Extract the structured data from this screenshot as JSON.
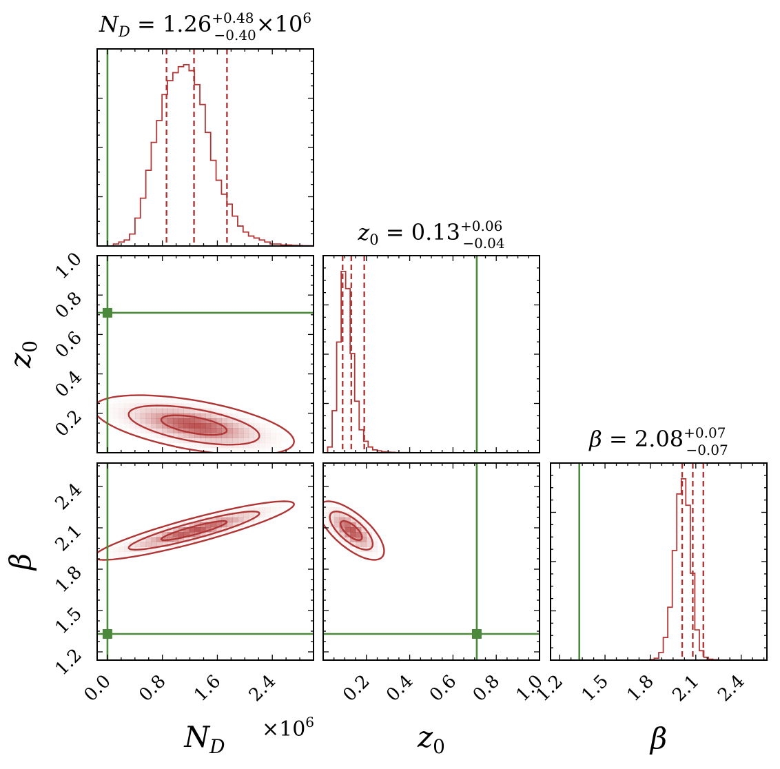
{
  "chart_data": {
    "type": "corner",
    "parameters": [
      "N_D",
      "z0",
      "beta"
    ],
    "truth_values": {
      "N_D": 0.0,
      "z0": 0.71,
      "beta": 1.33
    },
    "colors": {
      "posterior": "#b03535",
      "truth": "#4a8a3a",
      "axes": "#000000"
    },
    "titles": {
      "N_D": {
        "prefix": "N",
        "sub": "D",
        "eq": " = 1.26",
        "up": "+0.48",
        "down": "−0.40",
        "suffix": "×10",
        "exp": "6"
      },
      "z0": {
        "prefix": "z",
        "sub": "0",
        "eq": " = 0.13",
        "up": "+0.06",
        "down": "−0.04"
      },
      "beta": {
        "prefix": "β",
        "sub": "",
        "eq": " = 2.08",
        "up": "+0.07",
        "down": "−0.07"
      }
    },
    "axis_labels": {
      "x_N_D": {
        "main": "N",
        "sub": "D"
      },
      "x_multiplier": {
        "main": "×10",
        "exp": "6"
      },
      "x_z0": {
        "main": "z",
        "sub": "0"
      },
      "x_beta": {
        "main": "β",
        "sub": ""
      },
      "y_z0": {
        "main": "z",
        "sub": "0"
      },
      "y_beta": {
        "main": "β",
        "sub": ""
      }
    },
    "ranges": {
      "N_D": [
        -0.15,
        3.0
      ],
      "z0": [
        0.0,
        1.0
      ],
      "beta": [
        1.14,
        2.57
      ]
    },
    "ticks": {
      "N_D": {
        "values": [
          0.0,
          0.8,
          1.6,
          2.4
        ],
        "labels": [
          "0.0",
          "0.8",
          "1.6",
          "2.4"
        ]
      },
      "z0_x": {
        "values": [
          0.2,
          0.4,
          0.6,
          0.8,
          1.0
        ],
        "labels": [
          "0.2",
          "0.4",
          "0.6",
          "0.8",
          "1.0"
        ]
      },
      "z0_y": {
        "values": [
          0.2,
          0.4,
          0.6,
          0.8,
          1.0
        ],
        "labels": [
          "0.2",
          "0.4",
          "0.6",
          "0.8",
          "1.0"
        ]
      },
      "beta": {
        "values": [
          1.2,
          1.5,
          1.8,
          2.1,
          2.4
        ],
        "labels": [
          "1.2",
          "1.5",
          "1.8",
          "2.1",
          "2.4"
        ]
      }
    },
    "quantiles": {
      "N_D": [
        0.86,
        1.26,
        1.74
      ],
      "z0": [
        0.09,
        0.13,
        0.19
      ],
      "beta": [
        2.01,
        2.08,
        2.15
      ]
    },
    "histograms": {
      "N_D": {
        "start": -0.15,
        "width": 0.0787,
        "counts": [
          0,
          0,
          0,
          1,
          2,
          3,
          6,
          14,
          24,
          38,
          52,
          63,
          76,
          83,
          87,
          90,
          91,
          88,
          81,
          71,
          57,
          43,
          33,
          26,
          21,
          15,
          10,
          7,
          5,
          4,
          3,
          2,
          1,
          1,
          0.5,
          0.5,
          0.3,
          0.2,
          0.1,
          0.1
        ]
      },
      "z0": {
        "start": 0.0,
        "width": 0.0208,
        "counts": [
          0,
          3,
          22,
          58,
          95,
          86,
          52,
          27,
          12,
          6,
          3,
          1.5,
          1,
          0.5,
          0.3,
          0.2,
          0.1,
          0.1,
          0.1,
          0.05,
          0.05,
          0.02,
          0.02,
          0.02,
          0,
          0,
          0,
          0,
          0,
          0,
          0,
          0,
          0,
          0,
          0,
          0,
          0,
          0,
          0,
          0,
          0,
          0,
          0,
          0,
          0,
          0,
          0,
          0
        ]
      },
      "beta": {
        "start": 1.14,
        "width": 0.0298,
        "counts": [
          0,
          0,
          0,
          0,
          0,
          0,
          0,
          0,
          0,
          0,
          0,
          0,
          0,
          0,
          0,
          0,
          0,
          0,
          0,
          0,
          0,
          0,
          0.3,
          1,
          4,
          12,
          28,
          58,
          88,
          96,
          82,
          46,
          16,
          5,
          1.5,
          0.5,
          0.2,
          0,
          0,
          0,
          0,
          0,
          0,
          0,
          0,
          0,
          0,
          0
        ]
      }
    },
    "gaussians": {
      "N_D__z0": {
        "mean": [
          1.26,
          0.14
        ],
        "sd": [
          0.48,
          0.05
        ],
        "rho": -0.55
      },
      "N_D__beta": {
        "mean": [
          1.26,
          2.08
        ],
        "sd": [
          0.48,
          0.07
        ],
        "rho": 0.9
      },
      "z0__beta": {
        "mean": [
          0.13,
          2.08
        ],
        "sd": [
          0.05,
          0.07
        ],
        "rho": -0.7
      }
    },
    "contour_levels": [
      0.39,
      0.86,
      0.99
    ]
  }
}
